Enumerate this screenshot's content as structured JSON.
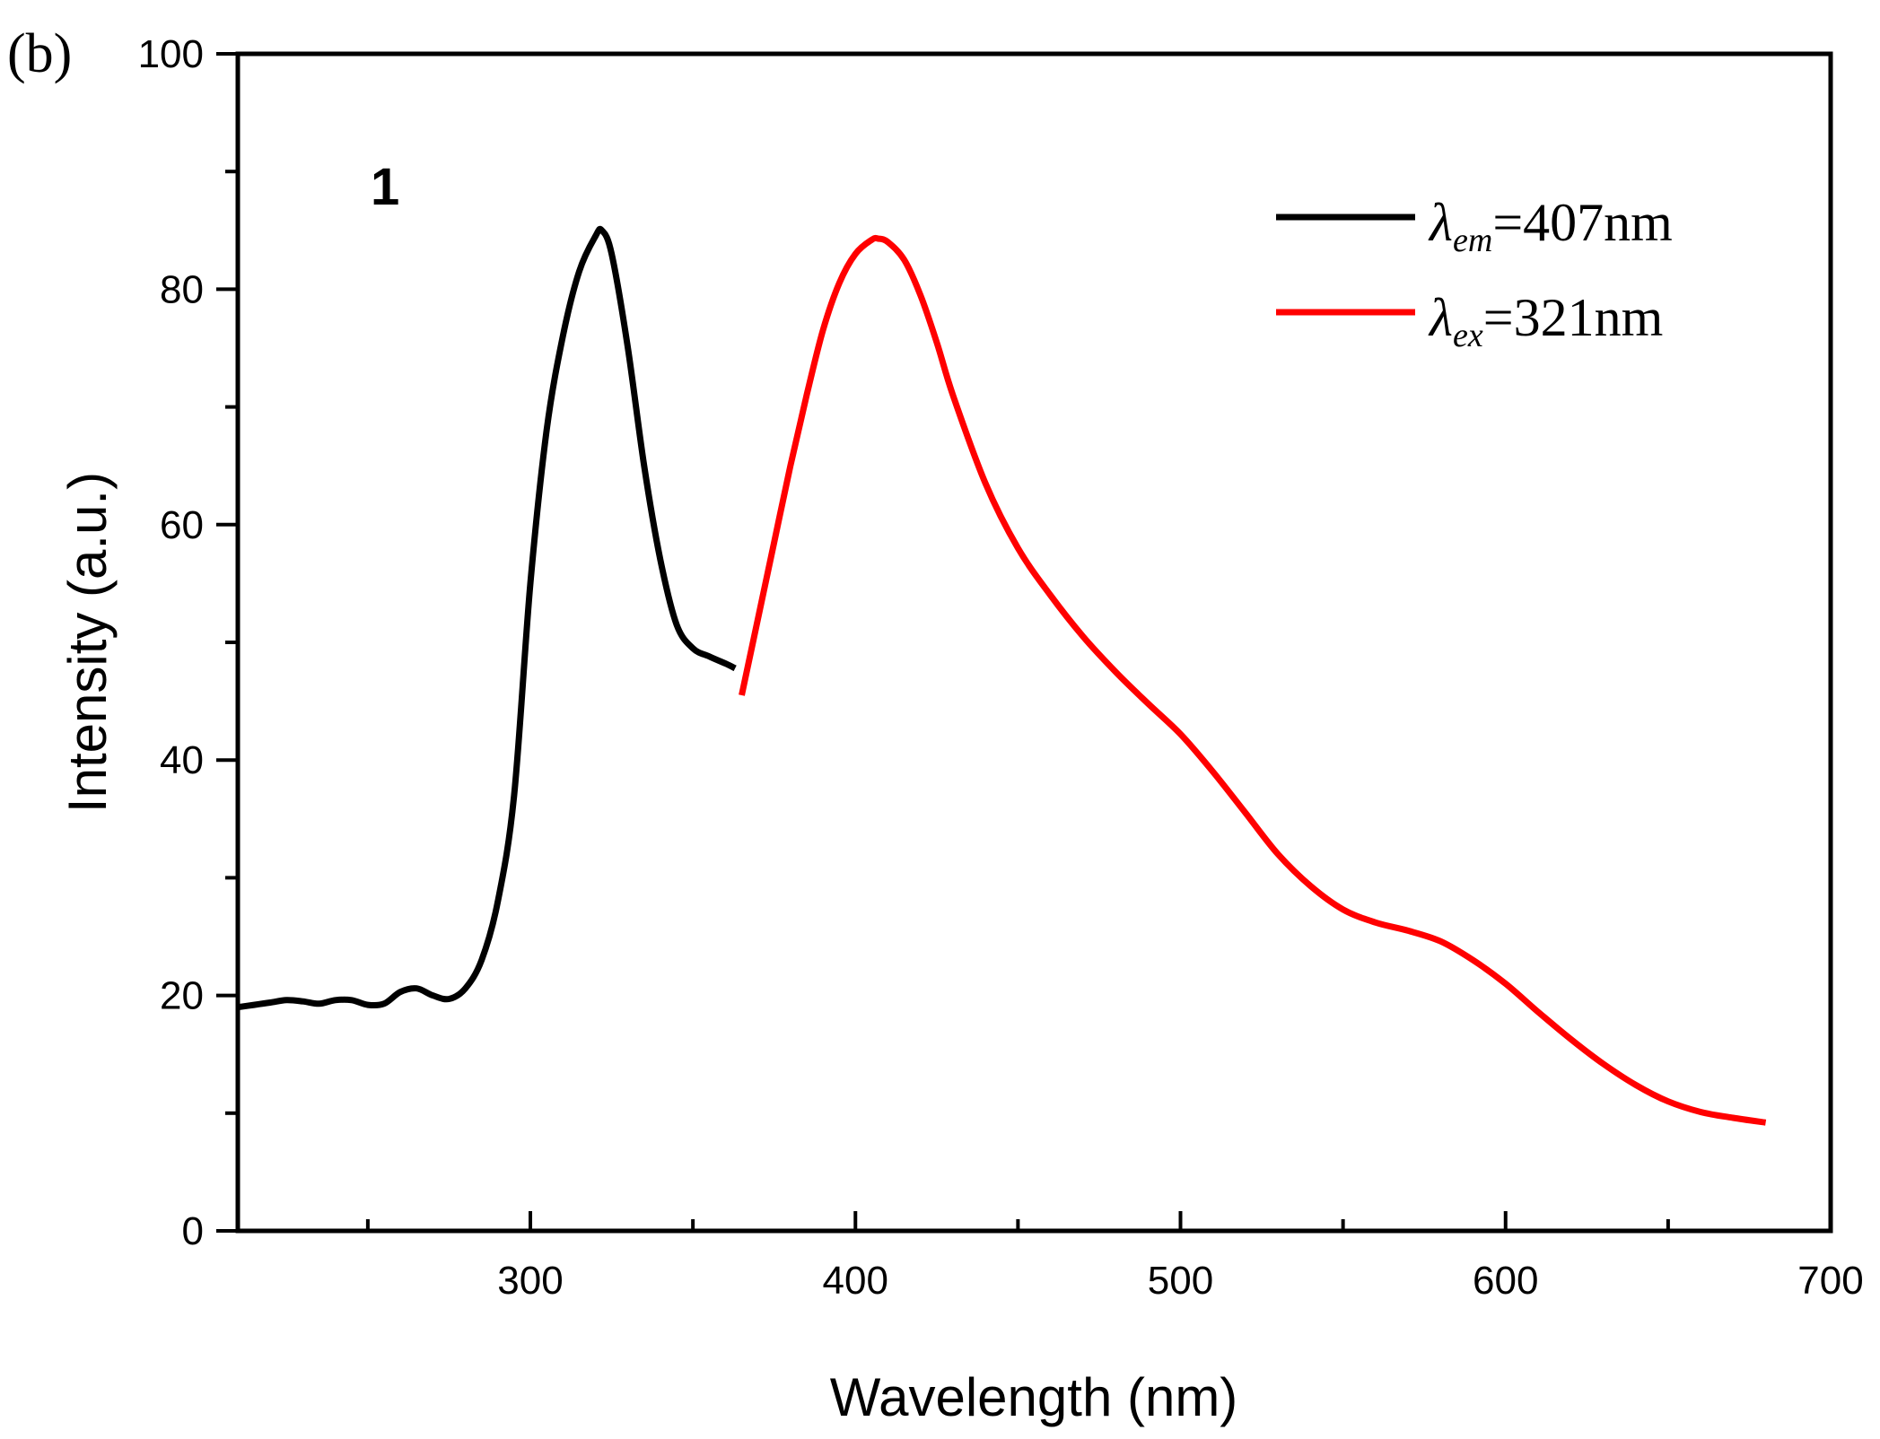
{
  "chart_data": {
    "type": "line",
    "panel_label": "(b)",
    "annotation": "1",
    "xlabel": "Wavelength (nm)",
    "ylabel": "Intensity (a.u.)",
    "xlim": [
      210,
      700
    ],
    "ylim": [
      0,
      100
    ],
    "x_ticks": [
      300,
      400,
      500,
      600,
      700
    ],
    "y_ticks": [
      0,
      20,
      40,
      60,
      80,
      100
    ],
    "legend_position": "top-right",
    "series": [
      {
        "name": "λem=407nm",
        "legend_symbol": "λ",
        "legend_subscript": "em",
        "legend_value": "=407nm",
        "color": "#000000",
        "x": [
          210,
          215,
          220,
          225,
          230,
          235,
          240,
          245,
          250,
          255,
          260,
          265,
          270,
          275,
          280,
          285,
          290,
          295,
          300,
          305,
          310,
          315,
          320,
          322,
          325,
          330,
          335,
          340,
          345,
          350,
          355,
          360,
          363
        ],
        "values": [
          19.0,
          19.2,
          19.4,
          19.6,
          19.5,
          19.3,
          19.6,
          19.6,
          19.2,
          19.3,
          20.3,
          20.6,
          20.0,
          19.7,
          20.6,
          23.0,
          28.0,
          37.0,
          55.0,
          68.0,
          76.0,
          81.5,
          84.5,
          85.0,
          83.0,
          75.0,
          65.0,
          57.0,
          51.5,
          49.5,
          48.8,
          48.2,
          47.8
        ]
      },
      {
        "name": "λex=321nm",
        "legend_symbol": "λ",
        "legend_subscript": "ex",
        "legend_value": "=321nm",
        "color": "#ff0000",
        "x": [
          365,
          370,
          375,
          380,
          385,
          390,
          395,
          400,
          405,
          407,
          410,
          415,
          420,
          425,
          430,
          440,
          450,
          460,
          470,
          480,
          490,
          500,
          510,
          520,
          530,
          540,
          550,
          560,
          570,
          580,
          590,
          600,
          610,
          620,
          630,
          640,
          650,
          660,
          670,
          680
        ],
        "values": [
          45.5,
          52.0,
          58.5,
          65.0,
          71.0,
          76.5,
          80.5,
          83.0,
          84.2,
          84.3,
          84.0,
          82.5,
          79.5,
          75.5,
          71.0,
          63.5,
          58.0,
          54.0,
          50.5,
          47.5,
          44.8,
          42.2,
          39.0,
          35.5,
          32.0,
          29.3,
          27.3,
          26.2,
          25.5,
          24.6,
          23.0,
          21.0,
          18.6,
          16.3,
          14.2,
          12.4,
          11.0,
          10.1,
          9.6,
          9.2
        ]
      }
    ]
  }
}
